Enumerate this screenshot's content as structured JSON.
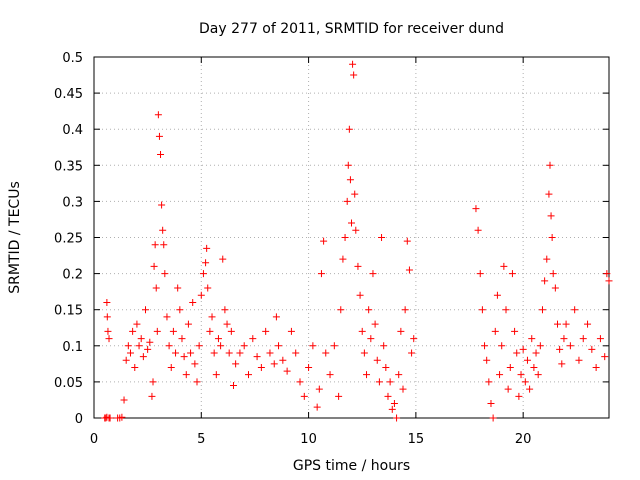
{
  "chart_data": {
    "type": "scatter",
    "title": "Day 277 of 2011, SRMTID for receiver dund",
    "xlabel": "GPS time / hours",
    "ylabel": "SRMTID / TECUs",
    "xlim": [
      0,
      24
    ],
    "ylim": [
      0,
      0.5
    ],
    "xticks": [
      0,
      5,
      10,
      15,
      20
    ],
    "yticks": [
      0,
      0.05,
      0.1,
      0.15,
      0.2,
      0.25,
      0.3,
      0.35,
      0.4,
      0.45,
      0.5
    ],
    "xtick_labels": [
      "0",
      "5",
      "10",
      "15",
      "20"
    ],
    "ytick_labels": [
      "0",
      "0.05",
      "0.1",
      "0.15",
      "0.2",
      "0.25",
      "0.3",
      "0.35",
      "0.4",
      "0.45",
      "0.5"
    ],
    "grid": true,
    "marker": "+",
    "color": "#ff0000",
    "series": [
      {
        "name": "SRMTID",
        "points": [
          [
            0.5,
            0.0
          ],
          [
            0.55,
            0.0
          ],
          [
            0.6,
            0.001
          ],
          [
            0.7,
            0.0
          ],
          [
            0.75,
            0.0
          ],
          [
            0.6,
            0.16
          ],
          [
            0.62,
            0.14
          ],
          [
            0.65,
            0.12
          ],
          [
            0.7,
            0.11
          ],
          [
            1.1,
            0.0
          ],
          [
            1.2,
            0.0
          ],
          [
            1.3,
            0.001
          ],
          [
            1.4,
            0.025
          ],
          [
            1.5,
            0.08
          ],
          [
            1.6,
            0.1
          ],
          [
            1.7,
            0.09
          ],
          [
            1.8,
            0.12
          ],
          [
            1.9,
            0.07
          ],
          [
            2.0,
            0.13
          ],
          [
            2.1,
            0.1
          ],
          [
            2.2,
            0.11
          ],
          [
            2.3,
            0.085
          ],
          [
            2.4,
            0.15
          ],
          [
            2.5,
            0.095
          ],
          [
            2.6,
            0.105
          ],
          [
            2.7,
            0.03
          ],
          [
            2.75,
            0.05
          ],
          [
            2.8,
            0.21
          ],
          [
            2.85,
            0.24
          ],
          [
            2.9,
            0.18
          ],
          [
            2.95,
            0.12
          ],
          [
            3.0,
            0.42
          ],
          [
            3.05,
            0.39
          ],
          [
            3.1,
            0.365
          ],
          [
            3.15,
            0.295
          ],
          [
            3.2,
            0.26
          ],
          [
            3.25,
            0.24
          ],
          [
            3.3,
            0.2
          ],
          [
            3.4,
            0.14
          ],
          [
            3.5,
            0.1
          ],
          [
            3.6,
            0.07
          ],
          [
            3.7,
            0.12
          ],
          [
            3.8,
            0.09
          ],
          [
            3.9,
            0.18
          ],
          [
            4.0,
            0.15
          ],
          [
            4.1,
            0.11
          ],
          [
            4.2,
            0.085
          ],
          [
            4.3,
            0.06
          ],
          [
            4.4,
            0.13
          ],
          [
            4.5,
            0.09
          ],
          [
            4.6,
            0.16
          ],
          [
            4.7,
            0.075
          ],
          [
            4.8,
            0.05
          ],
          [
            4.9,
            0.1
          ],
          [
            5.0,
            0.17
          ],
          [
            5.1,
            0.2
          ],
          [
            5.2,
            0.215
          ],
          [
            5.25,
            0.235
          ],
          [
            5.3,
            0.18
          ],
          [
            5.4,
            0.12
          ],
          [
            5.5,
            0.14
          ],
          [
            5.6,
            0.09
          ],
          [
            5.7,
            0.06
          ],
          [
            5.8,
            0.11
          ],
          [
            5.9,
            0.1
          ],
          [
            6.0,
            0.22
          ],
          [
            6.1,
            0.15
          ],
          [
            6.2,
            0.13
          ],
          [
            6.3,
            0.09
          ],
          [
            6.4,
            0.12
          ],
          [
            6.5,
            0.045
          ],
          [
            6.6,
            0.075
          ],
          [
            6.8,
            0.09
          ],
          [
            7.0,
            0.1
          ],
          [
            7.2,
            0.06
          ],
          [
            7.4,
            0.11
          ],
          [
            7.6,
            0.085
          ],
          [
            7.8,
            0.07
          ],
          [
            8.0,
            0.12
          ],
          [
            8.2,
            0.09
          ],
          [
            8.4,
            0.075
          ],
          [
            8.5,
            0.14
          ],
          [
            8.6,
            0.1
          ],
          [
            8.8,
            0.08
          ],
          [
            9.0,
            0.065
          ],
          [
            9.2,
            0.12
          ],
          [
            9.4,
            0.09
          ],
          [
            9.6,
            0.05
          ],
          [
            9.8,
            0.03
          ],
          [
            10.0,
            0.07
          ],
          [
            10.2,
            0.1
          ],
          [
            10.4,
            0.015
          ],
          [
            10.5,
            0.04
          ],
          [
            10.6,
            0.2
          ],
          [
            10.7,
            0.245
          ],
          [
            10.8,
            0.09
          ],
          [
            11.0,
            0.06
          ],
          [
            11.2,
            0.1
          ],
          [
            11.4,
            0.03
          ],
          [
            11.5,
            0.15
          ],
          [
            11.6,
            0.22
          ],
          [
            11.7,
            0.25
          ],
          [
            11.8,
            0.3
          ],
          [
            11.85,
            0.35
          ],
          [
            11.9,
            0.4
          ],
          [
            11.95,
            0.33
          ],
          [
            12.0,
            0.27
          ],
          [
            12.05,
            0.49
          ],
          [
            12.1,
            0.475
          ],
          [
            12.15,
            0.31
          ],
          [
            12.2,
            0.26
          ],
          [
            12.3,
            0.21
          ],
          [
            12.4,
            0.17
          ],
          [
            12.5,
            0.12
          ],
          [
            12.6,
            0.09
          ],
          [
            12.7,
            0.06
          ],
          [
            12.8,
            0.15
          ],
          [
            12.9,
            0.11
          ],
          [
            13.0,
            0.2
          ],
          [
            13.1,
            0.13
          ],
          [
            13.2,
            0.08
          ],
          [
            13.3,
            0.05
          ],
          [
            13.4,
            0.25
          ],
          [
            13.5,
            0.1
          ],
          [
            13.6,
            0.07
          ],
          [
            13.7,
            0.03
          ],
          [
            13.8,
            0.05
          ],
          [
            13.9,
            0.012
          ],
          [
            14.0,
            0.02
          ],
          [
            14.1,
            0.0
          ],
          [
            14.2,
            0.06
          ],
          [
            14.3,
            0.12
          ],
          [
            14.4,
            0.04
          ],
          [
            14.5,
            0.15
          ],
          [
            14.6,
            0.245
          ],
          [
            14.7,
            0.205
          ],
          [
            14.8,
            0.09
          ],
          [
            14.9,
            0.11
          ],
          [
            17.8,
            0.29
          ],
          [
            17.9,
            0.26
          ],
          [
            18.0,
            0.2
          ],
          [
            18.1,
            0.15
          ],
          [
            18.2,
            0.1
          ],
          [
            18.3,
            0.08
          ],
          [
            18.4,
            0.05
          ],
          [
            18.5,
            0.02
          ],
          [
            18.6,
            0.0
          ],
          [
            18.7,
            0.12
          ],
          [
            18.8,
            0.17
          ],
          [
            18.9,
            0.06
          ],
          [
            19.0,
            0.1
          ],
          [
            19.1,
            0.21
          ],
          [
            19.2,
            0.15
          ],
          [
            19.3,
            0.04
          ],
          [
            19.4,
            0.07
          ],
          [
            19.5,
            0.2
          ],
          [
            19.6,
            0.12
          ],
          [
            19.7,
            0.09
          ],
          [
            19.8,
            0.03
          ],
          [
            19.9,
            0.06
          ],
          [
            20.0,
            0.095
          ],
          [
            20.1,
            0.05
          ],
          [
            20.2,
            0.08
          ],
          [
            20.3,
            0.04
          ],
          [
            20.4,
            0.11
          ],
          [
            20.5,
            0.07
          ],
          [
            20.6,
            0.09
          ],
          [
            20.7,
            0.06
          ],
          [
            20.8,
            0.1
          ],
          [
            20.9,
            0.15
          ],
          [
            21.0,
            0.19
          ],
          [
            21.1,
            0.22
          ],
          [
            21.2,
            0.31
          ],
          [
            21.25,
            0.35
          ],
          [
            21.3,
            0.28
          ],
          [
            21.35,
            0.25
          ],
          [
            21.4,
            0.2
          ],
          [
            21.5,
            0.18
          ],
          [
            21.6,
            0.13
          ],
          [
            21.7,
            0.095
          ],
          [
            21.8,
            0.075
          ],
          [
            21.9,
            0.11
          ],
          [
            22.0,
            0.13
          ],
          [
            22.2,
            0.1
          ],
          [
            22.4,
            0.15
          ],
          [
            22.6,
            0.08
          ],
          [
            22.8,
            0.11
          ],
          [
            23.0,
            0.13
          ],
          [
            23.2,
            0.095
          ],
          [
            23.4,
            0.07
          ],
          [
            23.6,
            0.11
          ],
          [
            23.8,
            0.085
          ],
          [
            23.9,
            0.2
          ],
          [
            24.0,
            0.19
          ]
        ]
      }
    ]
  }
}
